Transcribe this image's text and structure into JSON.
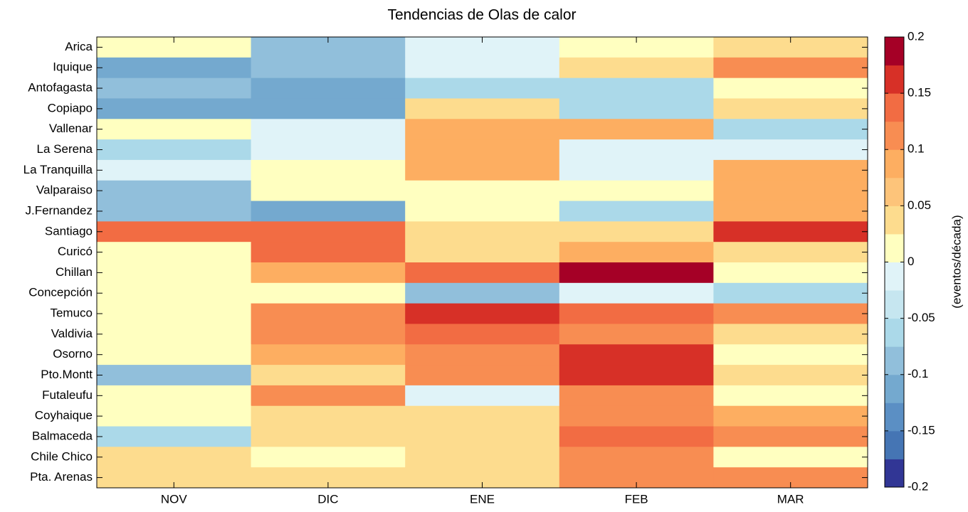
{
  "chart_data": {
    "type": "heatmap",
    "title": "Tendencias de Olas de calor",
    "x_categories": [
      "NOV",
      "DIC",
      "ENE",
      "FEB",
      "MAR"
    ],
    "y_categories": [
      "Arica",
      "Iquique",
      "Antofagasta",
      "Copiapo",
      "Vallenar",
      "La Serena",
      "La Tranquilla",
      "Valparaiso",
      "J.Fernandez",
      "Santiago",
      "Curicó",
      "Chillan",
      "Concepción",
      "Temuco",
      "Valdivia",
      "Osorno",
      "Pto.Montt",
      "Futaleufu",
      "Coyhaique",
      "Balmaceda",
      "Chile Chico",
      "Pta. Arenas"
    ],
    "values": [
      [
        0.0125,
        -0.0875,
        -0.0125,
        0.0125,
        0.0375
      ],
      [
        -0.1125,
        -0.0875,
        -0.0125,
        0.0375,
        0.1125
      ],
      [
        -0.0875,
        -0.1125,
        -0.0625,
        -0.0625,
        0.0125
      ],
      [
        -0.1125,
        -0.1125,
        0.0375,
        -0.0625,
        0.0375
      ],
      [
        0.0125,
        -0.0125,
        0.0875,
        0.0875,
        -0.0625
      ],
      [
        -0.0625,
        -0.0125,
        0.0875,
        -0.0125,
        -0.0125
      ],
      [
        -0.0125,
        0.0125,
        0.0875,
        -0.0125,
        0.0875
      ],
      [
        -0.0875,
        0.0125,
        0.0125,
        0.0125,
        0.0875
      ],
      [
        -0.0875,
        -0.1125,
        0.0125,
        -0.0625,
        0.0875
      ],
      [
        0.1375,
        0.1375,
        0.0375,
        0.0375,
        0.1625
      ],
      [
        0.0125,
        0.1375,
        0.0375,
        0.0875,
        0.0375
      ],
      [
        0.0125,
        0.0875,
        0.1375,
        0.1875,
        0.0125
      ],
      [
        0.0125,
        0.0125,
        -0.0875,
        -0.0125,
        -0.0625
      ],
      [
        0.0125,
        0.1125,
        0.1625,
        0.1375,
        0.1125
      ],
      [
        0.0125,
        0.1125,
        0.1375,
        0.1125,
        0.0375
      ],
      [
        0.0125,
        0.0875,
        0.1125,
        0.1625,
        0.0125
      ],
      [
        -0.0875,
        0.0375,
        0.1125,
        0.1625,
        0.0375
      ],
      [
        0.0125,
        0.1125,
        -0.0125,
        0.1125,
        0.0125
      ],
      [
        0.0125,
        0.0375,
        0.0375,
        0.1125,
        0.0875
      ],
      [
        -0.0625,
        0.0375,
        0.0375,
        0.1375,
        0.1125
      ],
      [
        0.0375,
        0.0125,
        0.0375,
        0.1125,
        0.0125
      ],
      [
        0.0375,
        0.0375,
        0.0375,
        0.1125,
        0.1125
      ]
    ],
    "colorbar": {
      "label": "(eventos/década)",
      "lim": [
        -0.2,
        0.2
      ],
      "ticks": [
        -0.2,
        -0.15,
        -0.1,
        -0.05,
        0,
        0.05,
        0.1,
        0.15,
        0.2
      ],
      "colors": [
        "#313695",
        "#4575b4",
        "#5b8fc4",
        "#74a9cf",
        "#91bfdb",
        "#abd9e9",
        "#c6e6f0",
        "#e0f3f8",
        "#ffffc0",
        "#fddc8e",
        "#fdc47a",
        "#fdae61",
        "#f88d52",
        "#f26c43",
        "#d73027",
        "#a50026"
      ]
    }
  }
}
